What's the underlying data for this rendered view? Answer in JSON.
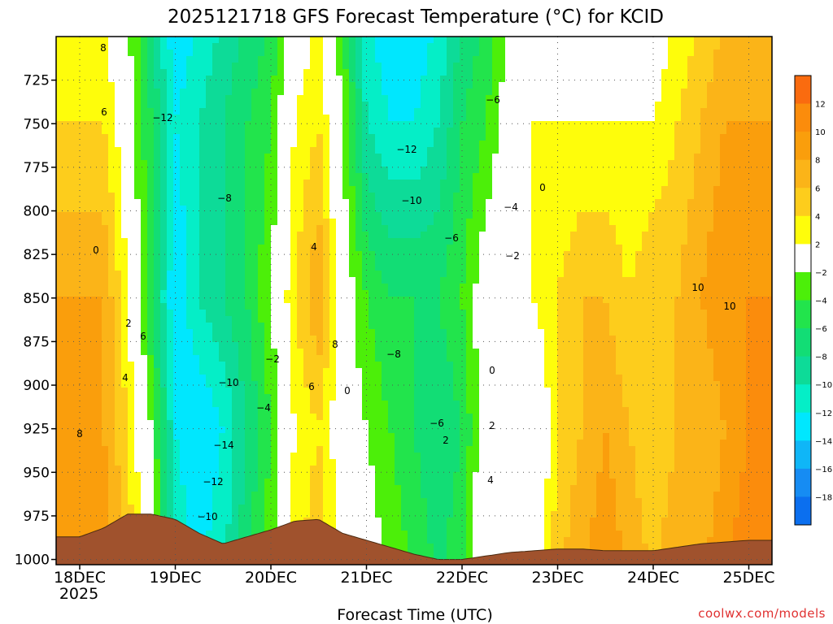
{
  "chart_data": {
    "type": "heatmap",
    "title": "2025121718 GFS Forecast Temperature (°C) for KCID",
    "xlabel": "Forecast Time (UTC)",
    "ylabel": "",
    "x_ticks": [
      "18DEC",
      "19DEC",
      "20DEC",
      "21DEC",
      "22DEC",
      "23DEC",
      "24DEC",
      "25DEC"
    ],
    "x_year": "2025",
    "y_ticks": [
      725,
      750,
      775,
      800,
      825,
      850,
      875,
      900,
      925,
      950,
      975,
      1000
    ],
    "ylim": [
      1003,
      700
    ],
    "xlim_days": [
      -0.25,
      7.25
    ],
    "colorbar": {
      "labels": [
        "12",
        "10",
        "8",
        "6",
        "4",
        "2",
        "−2",
        "−4",
        "−6",
        "−8",
        "−10",
        "−12",
        "−14",
        "−16",
        "−18"
      ],
      "levels": [
        14,
        12,
        10,
        8,
        6,
        4,
        2,
        -2,
        -4,
        -6,
        -8,
        -10,
        -12,
        -14,
        -16,
        -18,
        -20
      ],
      "colors": [
        "#fa6b0f",
        "#fb8c0c",
        "#fa9e0c",
        "#fbb418",
        "#fdcd1c",
        "#fefd0b",
        "#ffffff",
        "#4cef09",
        "#22e44c",
        "#12dd75",
        "#0ddb98",
        "#05eec7",
        "#00e7fe",
        "#0fb6f7",
        "#168cf3",
        "#0b6fef"
      ]
    },
    "series": [
      {
        "name": "925 hPa",
        "x": [
          0,
          0.25,
          0.5,
          0.75,
          1,
          1.25,
          1.5,
          1.75,
          2,
          2.25,
          2.5,
          2.75,
          3,
          3.25,
          3.5,
          3.75,
          4,
          4.25,
          4.5,
          4.75,
          5,
          5.25,
          5.5,
          5.75,
          6,
          6.25,
          6.5,
          6.75,
          7,
          7.25
        ],
        "values": [
          8,
          8,
          4,
          -2,
          -12,
          -14,
          -12,
          -8,
          -4,
          2,
          4,
          0,
          -2,
          -4,
          -6,
          -8,
          -6,
          0,
          0,
          -2,
          4,
          6,
          8,
          6,
          4,
          6,
          6,
          8,
          10,
          10
        ]
      },
      {
        "name": "850 hPa",
        "x": [
          0,
          0.25,
          0.5,
          0.75,
          1,
          1.25,
          1.5,
          1.75,
          2,
          2.25,
          2.5,
          2.75,
          3,
          3.25,
          3.5,
          3.75,
          4,
          4.25,
          4.5,
          4.75,
          5,
          5.25,
          5.5,
          5.75,
          6,
          6.25,
          6.5,
          6.75,
          7,
          7.25
        ],
        "values": [
          8,
          8,
          2,
          -6,
          -14,
          -10,
          -8,
          -6,
          -2,
          4,
          8,
          0,
          -4,
          -6,
          -6,
          -6,
          -4,
          0,
          0,
          2,
          4,
          6,
          6,
          4,
          6,
          6,
          8,
          10,
          10,
          10
        ]
      },
      {
        "name": "750 hPa",
        "x": [
          0,
          0.25,
          0.5,
          0.75,
          1,
          1.25,
          1.5,
          1.75,
          2,
          2.25,
          2.5,
          2.75,
          3,
          3.25,
          3.5,
          3.75,
          4,
          4.25,
          4.5,
          4.75,
          5,
          5.25,
          5.5,
          5.75,
          6,
          6.25,
          6.5,
          6.75,
          7,
          7.25
        ],
        "values": [
          4,
          4,
          0,
          -6,
          -12,
          -10,
          -8,
          -6,
          -4,
          2,
          4,
          -2,
          -10,
          -12,
          -12,
          -10,
          -6,
          -4,
          0,
          2,
          2,
          2,
          2,
          2,
          2,
          4,
          6,
          8,
          8,
          8
        ]
      },
      {
        "name": "Terrain (surface pressure, hPa)",
        "x": [
          0,
          0.25,
          0.5,
          0.75,
          1,
          1.25,
          1.5,
          1.75,
          2,
          2.25,
          2.5,
          2.75,
          3,
          3.25,
          3.5,
          3.75,
          4,
          4.25,
          4.5,
          4.75,
          5,
          5.25,
          5.5,
          5.75,
          6,
          6.25,
          6.5,
          6.75,
          7,
          7.25
        ],
        "values": [
          987,
          982,
          974,
          974,
          977,
          985,
          991,
          987,
          983,
          978,
          977,
          985,
          989,
          993,
          997,
          1000,
          1000,
          998,
          996,
          995,
          994,
          994,
          995,
          995,
          995,
          993,
          991,
          990,
          989,
          989
        ]
      }
    ],
    "annotations": [
      "−12",
      "−8",
      "−10",
      "−14",
      "−12",
      "−10",
      "−2",
      "−4",
      "−6",
      "−12",
      "−10",
      "−6",
      "−4",
      "−2",
      "−8",
      "−6",
      "2",
      "4",
      "8",
      "6",
      "0",
      "4",
      "8",
      "6",
      "2",
      "4",
      "6",
      "8",
      "10",
      "10",
      "0",
      "0",
      "2",
      "0"
    ]
  },
  "footer": {
    "credit": "coolwx.com/models"
  }
}
